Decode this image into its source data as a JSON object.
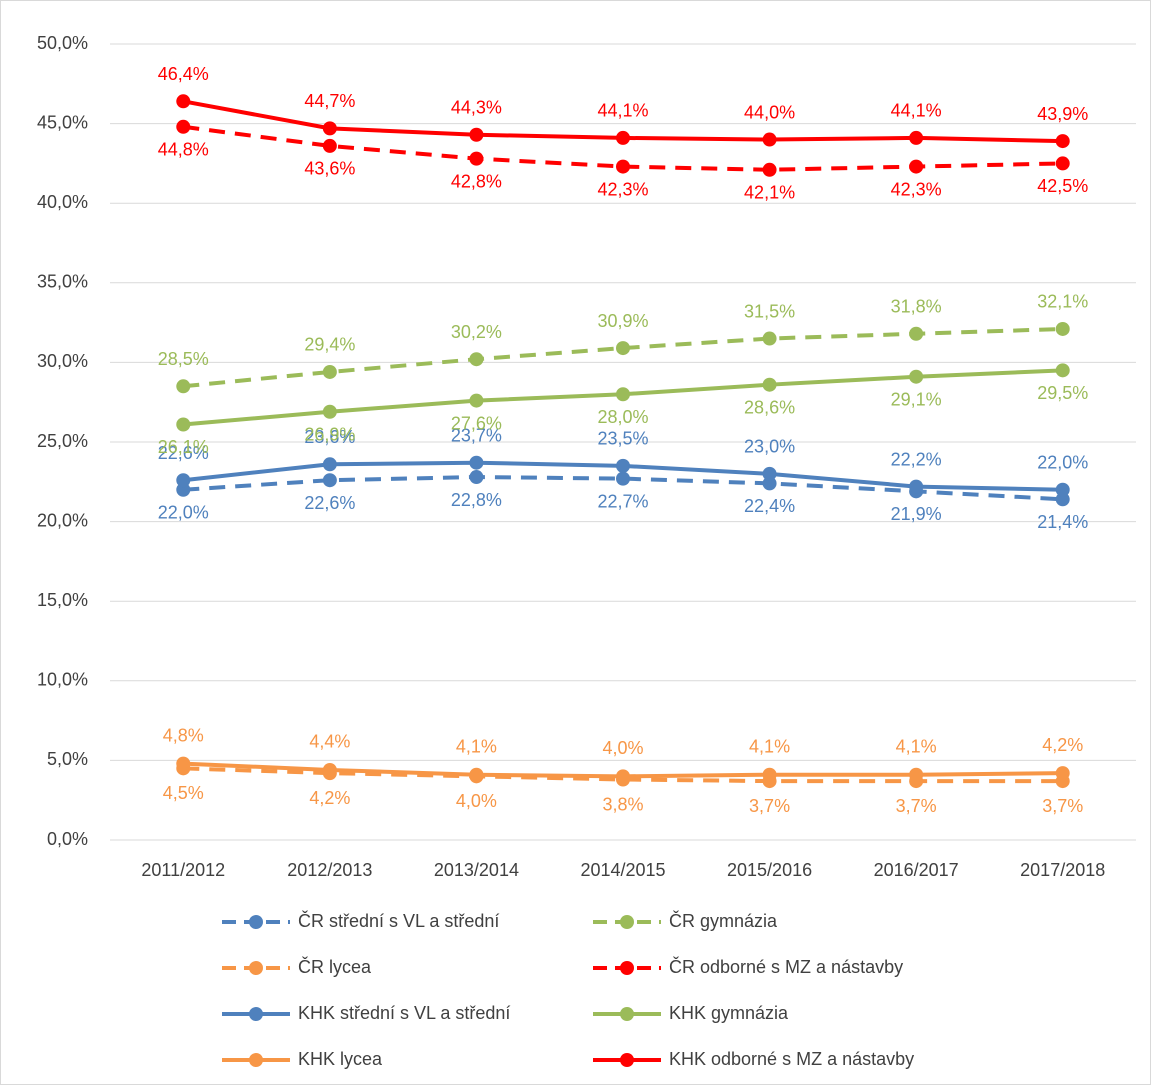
{
  "chart_data": {
    "type": "line",
    "categories": [
      "2011/2012",
      "2012/2013",
      "2013/2014",
      "2014/2015",
      "2015/2016",
      "2016/2017",
      "2017/2018"
    ],
    "ylim": [
      0,
      50
    ],
    "yticks": [
      {
        "value": 0,
        "label": "0,0%"
      },
      {
        "value": 5,
        "label": "5,0%"
      },
      {
        "value": 10,
        "label": "10,0%"
      },
      {
        "value": 15,
        "label": "15,0%"
      },
      {
        "value": 20,
        "label": "20,0%"
      },
      {
        "value": 25,
        "label": "25,0%"
      },
      {
        "value": 30,
        "label": "30,0%"
      },
      {
        "value": 35,
        "label": "35,0%"
      },
      {
        "value": 40,
        "label": "40,0%"
      },
      {
        "value": 45,
        "label": "45,0%"
      },
      {
        "value": 50,
        "label": "50,0%"
      }
    ],
    "grid": true,
    "series": [
      {
        "name": "ČR střední s VL a střední",
        "color": "#4f81bd",
        "dashed": true,
        "values": [
          22.0,
          22.6,
          22.8,
          22.7,
          22.4,
          21.9,
          21.4
        ],
        "value_labels": [
          "22,0%",
          "22,6%",
          "22,8%",
          "22,7%",
          "22,4%",
          "21,9%",
          "21,4%"
        ]
      },
      {
        "name": "ČR gymnázia",
        "color": "#9bbb59",
        "dashed": true,
        "values": [
          28.5,
          29.4,
          30.2,
          30.9,
          31.5,
          31.8,
          32.1
        ],
        "value_labels": [
          "28,5%",
          "29,4%",
          "30,2%",
          "30,9%",
          "31,5%",
          "31,8%",
          "32,1%"
        ]
      },
      {
        "name": "ČR lycea",
        "color": "#f79646",
        "dashed": true,
        "values": [
          4.5,
          4.2,
          4.0,
          3.8,
          3.7,
          3.7,
          3.7
        ],
        "value_labels": [
          "4,5%",
          "4,2%",
          "4,0%",
          "3,8%",
          "3,7%",
          "3,7%",
          "3,7%"
        ]
      },
      {
        "name": "ČR odborné s MZ a nástavby",
        "color": "#ff0000",
        "dashed": true,
        "values": [
          44.8,
          43.6,
          42.8,
          42.3,
          42.1,
          42.3,
          42.5
        ],
        "value_labels": [
          "44,8%",
          "43,6%",
          "42,8%",
          "42,3%",
          "42,1%",
          "42,3%",
          "42,5%"
        ]
      },
      {
        "name": "KHK střední s VL a střední",
        "color": "#4f81bd",
        "dashed": false,
        "values": [
          22.6,
          23.6,
          23.7,
          23.5,
          23.0,
          22.2,
          22.0
        ],
        "value_labels": [
          "22,6%",
          "23,6%",
          "23,7%",
          "23,5%",
          "23,0%",
          "22,2%",
          "22,0%"
        ]
      },
      {
        "name": "KHK gymnázia",
        "color": "#9bbb59",
        "dashed": false,
        "values": [
          26.1,
          26.9,
          27.6,
          28.0,
          28.6,
          29.1,
          29.5
        ],
        "value_labels": [
          "26,1%",
          "26,9%",
          "27,6%",
          "28,0%",
          "28,6%",
          "29,1%",
          "29,5%"
        ]
      },
      {
        "name": "KHK lycea",
        "color": "#f79646",
        "dashed": false,
        "values": [
          4.8,
          4.4,
          4.1,
          4.0,
          4.1,
          4.1,
          4.2
        ],
        "value_labels": [
          "4,8%",
          "4,4%",
          "4,1%",
          "4,0%",
          "4,1%",
          "4,1%",
          "4,2%"
        ]
      },
      {
        "name": "KHK odborné s MZ a nástavby",
        "color": "#ff0000",
        "dashed": false,
        "values": [
          46.4,
          44.7,
          44.3,
          44.1,
          44.0,
          44.1,
          43.9
        ],
        "value_labels": [
          "46,4%",
          "44,7%",
          "44,3%",
          "44,1%",
          "44,0%",
          "44,1%",
          "43,9%"
        ]
      }
    ]
  }
}
